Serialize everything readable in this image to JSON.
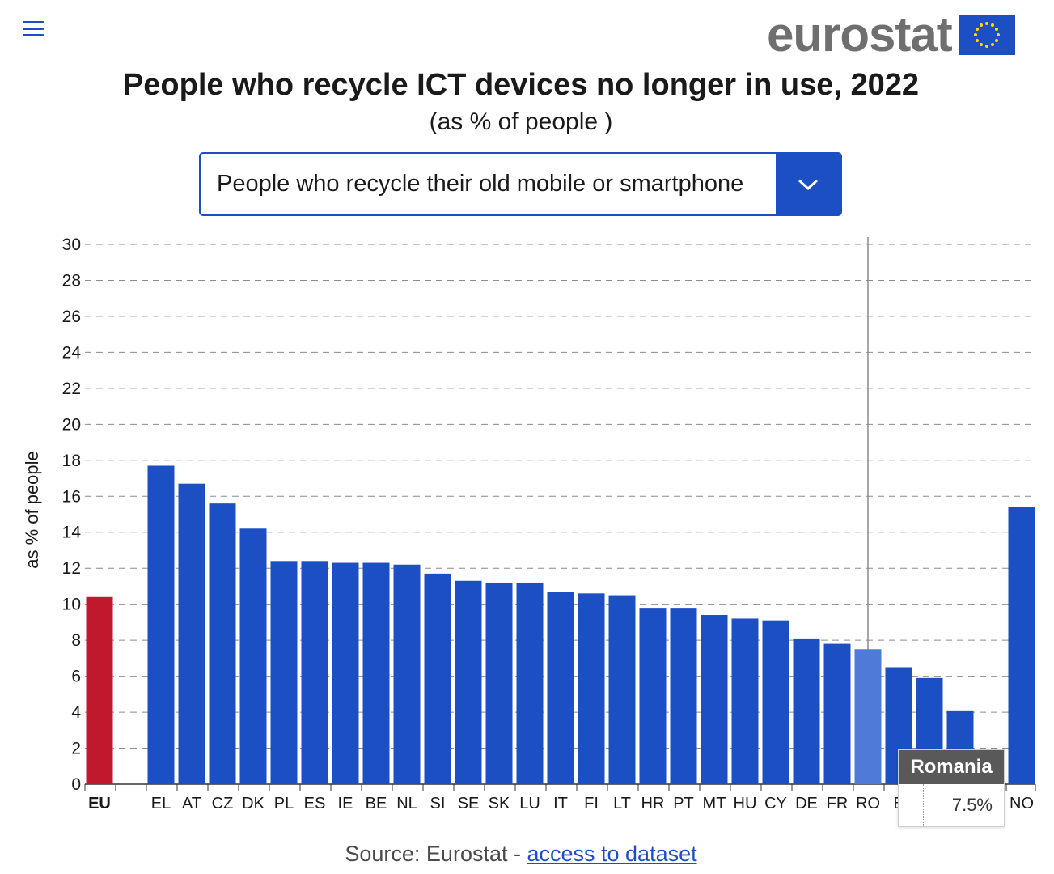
{
  "header": {
    "menu_icon": "hamburger-menu-icon",
    "logo_text": "eurostat",
    "logo_flag_icon": "eu-flag-icon"
  },
  "title": "People who recycle ICT devices no longer in use, 2022",
  "subtitle": "(as % of people )",
  "selector": {
    "selected": "People who recycle their old mobile or smartphone",
    "chevron_icon": "chevron-down-icon"
  },
  "tooltip": {
    "country": "Romania",
    "value": "7.5%"
  },
  "source": {
    "prefix": "Source: Eurostat - ",
    "link_text": "access to dataset"
  },
  "colors": {
    "accent": "#1d4fc4",
    "eu_bar": "#c0192e",
    "highlight_bar": "#4f7ad8",
    "title": "#1a1a1a"
  },
  "chart_data": {
    "type": "bar",
    "ylabel": "as % of people",
    "ylim": [
      0,
      30
    ],
    "yticks": [
      0,
      2,
      4,
      6,
      8,
      10,
      12,
      14,
      16,
      18,
      20,
      22,
      24,
      26,
      28,
      30
    ],
    "grid": true,
    "categories": [
      "EU",
      "EL",
      "AT",
      "CZ",
      "DK",
      "PL",
      "ES",
      "IE",
      "BE",
      "NL",
      "SI",
      "SE",
      "SK",
      "LU",
      "IT",
      "FI",
      "LT",
      "HR",
      "PT",
      "MT",
      "HU",
      "CY",
      "DE",
      "FR",
      "RO",
      "E",
      "",
      "",
      "NO"
    ],
    "values": [
      10.4,
      17.7,
      16.7,
      15.6,
      14.2,
      12.4,
      12.4,
      12.3,
      12.3,
      12.2,
      11.7,
      11.3,
      11.2,
      11.2,
      10.7,
      10.6,
      10.5,
      9.8,
      9.8,
      9.4,
      9.2,
      9.1,
      8.1,
      7.8,
      7.5,
      6.5,
      5.9,
      4.1,
      15.4
    ],
    "highlighted": "RO",
    "eu_aggregate": "EU"
  }
}
